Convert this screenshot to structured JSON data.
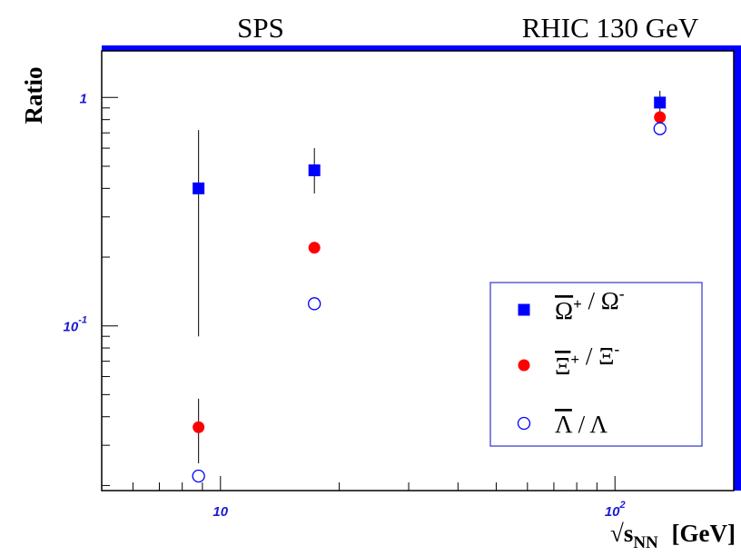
{
  "chart_data": {
    "type": "scatter",
    "top_labels": [
      "SPS",
      "RHIC 130 GeV"
    ],
    "xlabel": "√s",
    "xlabel_subscript": "NN",
    "xlabel_unit": "[GeV]",
    "ylabel": "Ratio",
    "x_scale": "log",
    "y_scale": "log",
    "xlim": [
      5,
      200
    ],
    "ylim": [
      0.019,
      1.6
    ],
    "x_tick_labels": [
      {
        "value": 10,
        "base": "10",
        "exp": ""
      },
      {
        "value": 100,
        "base": "10",
        "exp": "2"
      }
    ],
    "y_tick_labels": [
      {
        "value": 1,
        "base": "1",
        "exp": ""
      },
      {
        "value": 0.1,
        "base": "10",
        "exp": "-1"
      }
    ],
    "grid": false,
    "legend_position": "bottom-right",
    "series": [
      {
        "name_base": "Ω",
        "name_sup": "+",
        "name_sep": "/",
        "name_den": "Ω",
        "name_den_sup": "-",
        "marker": "filled-square",
        "color": "#0000ff",
        "points": [
          {
            "x": 8.8,
            "y": 0.4,
            "err_low": 0.09,
            "err_high": 0.72
          },
          {
            "x": 17.3,
            "y": 0.48,
            "err_low": 0.38,
            "err_high": 0.6
          },
          {
            "x": 130,
            "y": 0.95,
            "err_low": 0.85,
            "err_high": 1.07
          }
        ]
      },
      {
        "name_base": "Ξ",
        "name_sup": "+",
        "name_sep": "/",
        "name_den": "Ξ",
        "name_den_sup": "-",
        "marker": "filled-circle",
        "color": "#ff0000",
        "points": [
          {
            "x": 8.8,
            "y": 0.036,
            "err_low": 0.025,
            "err_high": 0.048
          },
          {
            "x": 17.3,
            "y": 0.22
          },
          {
            "x": 130,
            "y": 0.82
          }
        ]
      },
      {
        "name_base": "Λ",
        "name_sup": "",
        "name_sep": "/",
        "name_den": "Λ",
        "name_den_sup": "",
        "marker": "open-circle",
        "color": "#0000ff",
        "points": [
          {
            "x": 8.8,
            "y": 0.022
          },
          {
            "x": 17.3,
            "y": 0.125
          },
          {
            "x": 130,
            "y": 0.73
          }
        ]
      }
    ]
  }
}
